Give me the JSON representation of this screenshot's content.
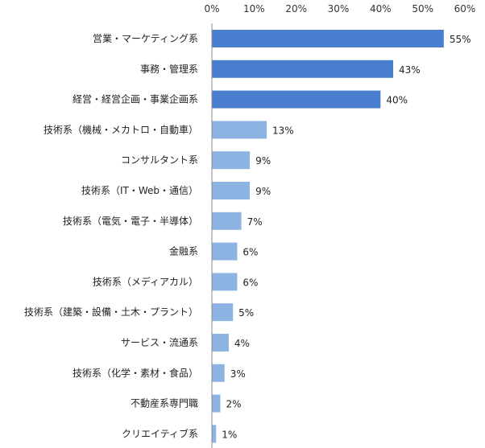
{
  "chart_data": {
    "type": "bar",
    "orientation": "horizontal",
    "title": "",
    "xlabel": "",
    "ylabel": "",
    "xlim": [
      0,
      60
    ],
    "x_tick_labels": [
      "0%",
      "10%",
      "20%",
      "30%",
      "40%",
      "50%",
      "60%"
    ],
    "x_ticks": [
      0,
      10,
      20,
      30,
      40,
      50,
      60
    ],
    "grid": false,
    "legend": "none",
    "categories": [
      "営業・マーケティング系",
      "事務・管理系",
      "経営・経営企画・事業企画系",
      "技術系（機械・メカトロ・自動車）",
      "コンサルタント系",
      "技術系（IT・Web・通信）",
      "技術系（電気・電子・半導体）",
      "金融系",
      "技術系（メディアカル）",
      "技術系（建築・設備・土木・プラント）",
      "サービス・流通系",
      "技術系（化学・素材・食品）",
      "不動産系専門職",
      "クリエイティブ系"
    ],
    "values": [
      55,
      43,
      40,
      13,
      9,
      9,
      7,
      6,
      6,
      5,
      4,
      3,
      2,
      1
    ],
    "value_labels": [
      "55%",
      "43%",
      "40%",
      "13%",
      "9%",
      "9%",
      "7%",
      "6%",
      "6%",
      "5%",
      "4%",
      "3%",
      "2%",
      "1%"
    ],
    "colors": {
      "top_bars": "#4a7fd0",
      "other_bars": "#8db3e2",
      "axis": "#888888"
    },
    "highlight_count": 3
  }
}
